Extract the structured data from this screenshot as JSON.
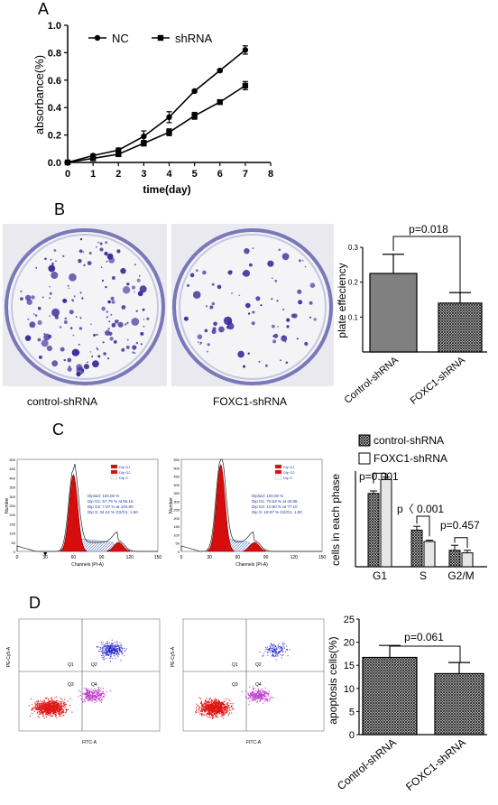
{
  "panels": {
    "a": "A",
    "b": "B",
    "c": "C",
    "d": "D"
  },
  "chart_data": [
    {
      "type": "line",
      "panel": "A",
      "xlabel": "time(day)",
      "ylabel": "absorbance(%)",
      "xlim": [
        0,
        8
      ],
      "ylim": [
        0,
        1.0
      ],
      "xticks": [
        "0",
        "1",
        "2",
        "3",
        "4",
        "5",
        "6",
        "7",
        "8"
      ],
      "yticks": [
        "0.0",
        "0.2",
        "0.4",
        "0.6",
        "0.8",
        "1.0"
      ],
      "legend_position": "top-left",
      "x": [
        0,
        1,
        2,
        3,
        4,
        5,
        6,
        7
      ],
      "series": [
        {
          "name": "NC",
          "marker": "circle",
          "values": [
            0.0,
            0.05,
            0.09,
            0.19,
            0.33,
            0.52,
            0.67,
            0.82
          ],
          "errors": [
            0.0,
            0.01,
            0.015,
            0.04,
            0.04,
            0.01,
            0.01,
            0.03
          ]
        },
        {
          "name": "shRNA",
          "marker": "square",
          "values": [
            0.0,
            0.03,
            0.06,
            0.14,
            0.22,
            0.34,
            0.44,
            0.56
          ],
          "errors": [
            0.0,
            0.01,
            0.015,
            0.02,
            0.025,
            0.025,
            0.01,
            0.03
          ]
        }
      ]
    },
    {
      "type": "bar",
      "panel": "B",
      "ylabel": "plate effeciency",
      "ylim": [
        0,
        0.3
      ],
      "yticks": [
        "0.1",
        "0.2",
        "0.3"
      ],
      "categories": [
        "Control-shRNA",
        "FOXC1-shRNA"
      ],
      "values": [
        0.225,
        0.14
      ],
      "errors": [
        0.055,
        0.03
      ],
      "annotations": [
        "p=0.018"
      ]
    },
    {
      "type": "bar",
      "panel": "C",
      "ylabel": "cells in each phase",
      "categories": [
        "G1",
        "S",
        "G2/M"
      ],
      "legend_position": "top",
      "series": [
        {
          "name": "control-shRNA",
          "values": [
            58,
            29,
            13
          ],
          "errors": [
            2,
            3,
            4
          ]
        },
        {
          "name": "FOXC1-shRNA",
          "values": [
            69,
            20,
            11
          ],
          "errors": [
            2,
            1,
            2
          ]
        }
      ],
      "annotations": [
        "p=0.001",
        "p〈 0.001",
        "p=0.457"
      ]
    },
    {
      "type": "bar",
      "panel": "D",
      "ylabel": "apoptosis cells(%)",
      "ylim": [
        0,
        25
      ],
      "yticks": [
        "0",
        "5",
        "10",
        "15",
        "20",
        "25"
      ],
      "categories": [
        "Control-shRNA",
        "FOXC1-shRNA"
      ],
      "values": [
        16.7,
        13.2
      ],
      "errors": [
        2.6,
        2.4
      ],
      "annotations": [
        "p=0.061"
      ]
    }
  ],
  "panel_b": {
    "captions": [
      "control-shRNA",
      "FOXC1-shRNA"
    ]
  },
  "panel_c": {
    "flow": [
      {
        "ylabel": "Number",
        "xlabel": "Channels (PI-A)",
        "xticks": [
          "0",
          "30",
          "60",
          "90",
          "120",
          "150"
        ],
        "yticks": [
          "0",
          "50",
          "100",
          "150",
          "200",
          "250",
          "300",
          "350",
          "400",
          "450",
          "500"
        ],
        "legend": [
          "Dip G1",
          "Dip G2",
          "Dip S"
        ],
        "stats": [
          "Diploid: 100.00 %",
          "Dip G1: 57.79 % at 55.16",
          "Dip G2: 7.97 % at 104.80",
          "Dip S: 34.24 %   G2/G1: 1.90"
        ]
      },
      {
        "ylabel": "Number",
        "xlabel": "Channels (PI-A)",
        "xticks": [
          "0",
          "30",
          "60",
          "90",
          "120",
          "150"
        ],
        "yticks": [
          "0",
          "50",
          "100",
          "150",
          "200",
          "250",
          "300",
          "350",
          "400",
          "450",
          "500",
          "550"
        ],
        "legend": [
          "Dip G1",
          "Dip G2",
          "Dip S"
        ],
        "stats": [
          "Diploid: 100.00 %",
          "Dip G1: 70.53 % at 40.88",
          "Dip G2: 10.50 % at 77.10",
          "Dip S: 18.97 %   G2/G1: 1.90"
        ]
      }
    ]
  },
  "panel_d": {
    "scatter": [
      {
        "ylabel": "PE-Cy5-A",
        "xlabel": "FITC-A",
        "quadrants": [
          "Q1",
          "Q2",
          "Q3",
          "Q4"
        ]
      },
      {
        "ylabel": "PE-Cy5-A",
        "xlabel": "FITC-A",
        "quadrants": [
          "Q1",
          "Q2",
          "Q3",
          "Q4"
        ]
      }
    ]
  },
  "colors": {
    "plate_bg": "#e6e6ec",
    "colony": "#3a2e9a",
    "g1_fill": "#d60d0d",
    "s_hatch": "#6a7fc8",
    "scatter_red": "#e01818",
    "scatter_blue": "#2020c8",
    "scatter_magenta": "#c040d0",
    "bar_hatch": "#1a1a1a"
  }
}
